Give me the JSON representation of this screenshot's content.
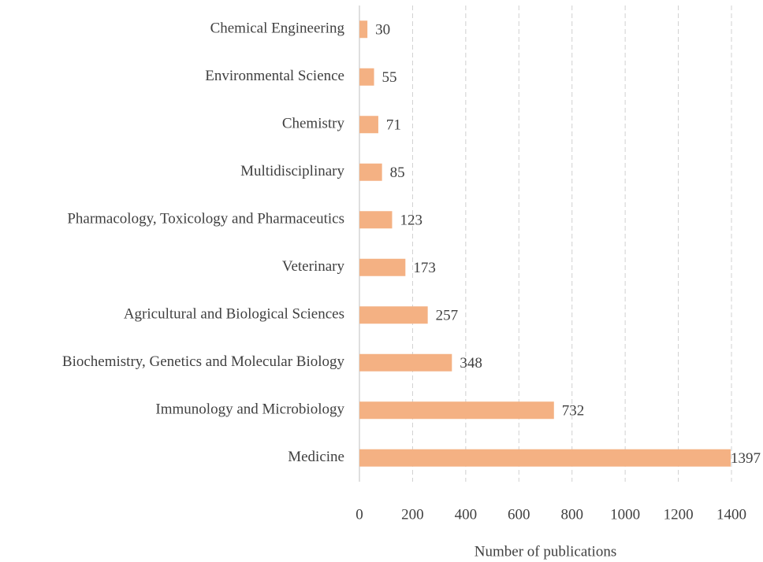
{
  "chart_data": {
    "type": "barh",
    "categories": [
      "Chemical Engineering",
      "Environmental Science",
      "Chemistry",
      "Multidisciplinary",
      "Pharmacology,  Toxicology and Pharmaceutics",
      "Veterinary",
      "Agricultural and Biological Sciences",
      "Biochemistry,  Genetics and Molecular Biology",
      "Immunology and Microbiology",
      "Medicine"
    ],
    "values": [
      30,
      55,
      71,
      85,
      123,
      173,
      257,
      348,
      732,
      1397
    ],
    "color": "#f4b183",
    "xlabel": "Number of publications",
    "xlim": [
      0,
      1400
    ],
    "xticks": [
      0,
      200,
      400,
      600,
      800,
      1000,
      1200,
      1400
    ],
    "grid": true
  }
}
